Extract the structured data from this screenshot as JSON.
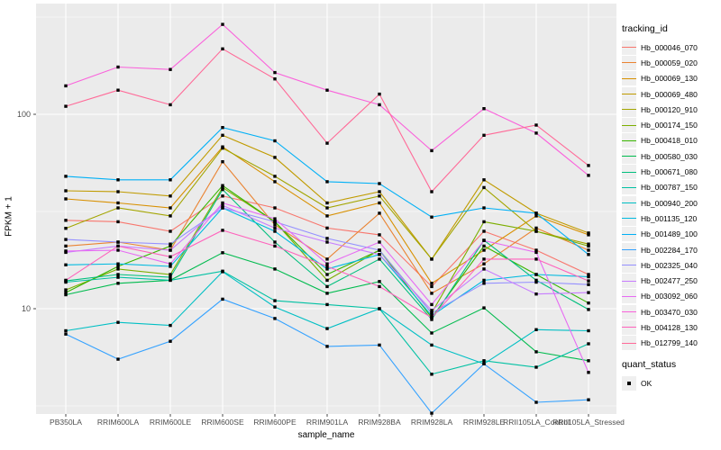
{
  "chart_data": {
    "type": "line",
    "title": "",
    "xlabel": "sample_name",
    "ylabel": "FPKM + 1",
    "yscale": "log10",
    "ylim": [
      2.8,
      360
    ],
    "yticks": [
      {
        "value": 10,
        "label": "10"
      },
      {
        "value": 100,
        "label": "100"
      }
    ],
    "yminor": [
      3.162,
      31.62,
      316.2
    ],
    "grid": "white-on-grey",
    "legend_position": "right",
    "categories": [
      "PB350LA",
      "RRIM600LA",
      "RRIM600LE",
      "RRIM600SE",
      "RRIM600PE",
      "RRIM901LA",
      "RRIM928BA",
      "RRIM928LA",
      "RRIM928LE",
      "RRII105LA_Control",
      "RRII105LA_Stressed"
    ],
    "series": [
      {
        "name": "Hb_000046_070",
        "color": "#F8766D",
        "values": [
          28.5,
          28,
          25,
          38,
          33,
          26,
          24,
          13,
          25,
          20,
          15
        ]
      },
      {
        "name": "Hb_000059_020",
        "color": "#EA8331",
        "values": [
          21,
          22,
          20,
          57,
          27,
          18,
          31,
          12,
          17,
          26,
          20
        ]
      },
      {
        "name": "Hb_000069_130",
        "color": "#D89000",
        "values": [
          36.7,
          35,
          33,
          68,
          45,
          30,
          35,
          13.5,
          20,
          30,
          24
        ]
      },
      {
        "name": "Hb_000069_480",
        "color": "#C09B00",
        "values": [
          40.4,
          40,
          38,
          78,
          60,
          35,
          40,
          18,
          46,
          31,
          24.5
        ]
      },
      {
        "name": "Hb_000120_910",
        "color": "#A3A500",
        "values": [
          25.9,
          33,
          30,
          67,
          48,
          33,
          38,
          18,
          42,
          25,
          21.5
        ]
      },
      {
        "name": "Hb_000174_150",
        "color": "#7CAE00",
        "values": [
          12.5,
          16,
          15,
          42,
          28,
          14,
          20,
          9.5,
          28,
          25,
          21
        ]
      },
      {
        "name": "Hb_000418_010",
        "color": "#39B600",
        "values": [
          12.1,
          16.5,
          21,
          43,
          28,
          15,
          20,
          9,
          21,
          15,
          10.7
        ]
      },
      {
        "name": "Hb_000580_030",
        "color": "#00BB4E",
        "values": [
          11.8,
          13.5,
          14,
          19.4,
          16,
          12,
          13.8,
          7.5,
          10.1,
          6,
          5.4
        ]
      },
      {
        "name": "Hb_000671_080",
        "color": "#00BF7D",
        "values": [
          13.9,
          15,
          14.5,
          41,
          22,
          13,
          18,
          8.8,
          22.5,
          14,
          9.9
        ]
      },
      {
        "name": "Hb_000787_150",
        "color": "#00C1A3",
        "values": [
          13.7,
          14.5,
          14,
          15.6,
          11,
          10.5,
          10,
          4.6,
          5.4,
          5,
          6.6
        ]
      },
      {
        "name": "Hb_000940_200",
        "color": "#00BFC4",
        "values": [
          7.7,
          8.5,
          8.2,
          15.5,
          10.2,
          7.9,
          10,
          6.5,
          5.2,
          7.8,
          7.7
        ]
      },
      {
        "name": "Hb_001135_120",
        "color": "#00BAE0",
        "values": [
          16.8,
          17,
          16.5,
          33,
          25,
          16,
          19,
          9.2,
          14,
          15,
          14.6
        ]
      },
      {
        "name": "Hb_001489_100",
        "color": "#00B0F6",
        "values": [
          48,
          46,
          46,
          85.5,
          73,
          45,
          44,
          29.6,
          33,
          31,
          19
        ]
      },
      {
        "name": "Hb_002284_170",
        "color": "#35A2FF",
        "values": [
          7.4,
          5.5,
          6.8,
          11.2,
          8.9,
          6.4,
          6.5,
          2.9,
          5.2,
          3.3,
          3.4
        ]
      },
      {
        "name": "Hb_002325_040",
        "color": "#9590FF",
        "values": [
          22.7,
          22,
          21.5,
          33,
          28,
          23,
          20,
          9.5,
          13.5,
          13.7,
          13.3
        ]
      },
      {
        "name": "Hb_002477_250",
        "color": "#C77CFF",
        "values": [
          19.5,
          21,
          20,
          34,
          26,
          22,
          19,
          9.8,
          16,
          11.9,
          12.1
        ]
      },
      {
        "name": "Hb_003092_060",
        "color": "#E76BF3",
        "values": [
          19.8,
          20,
          17,
          35,
          29,
          17,
          22,
          10.5,
          22.4,
          19.5,
          4.7
        ]
      },
      {
        "name": "Hb_003470_030",
        "color": "#FA62DB",
        "values": [
          140,
          175,
          170,
          290,
          164,
          133,
          112,
          65,
          107,
          80,
          48.5
        ]
      },
      {
        "name": "Hb_004128_130",
        "color": "#FF62BC",
        "values": [
          14,
          21,
          18.5,
          25.3,
          21,
          16.5,
          13,
          9,
          18,
          18,
          13.9
        ]
      },
      {
        "name": "Hb_012799_140",
        "color": "#FF6A98",
        "values": [
          110,
          133,
          112,
          217,
          152,
          71,
          127,
          40,
          78,
          88,
          54.5
        ]
      }
    ],
    "legend": {
      "tracking_title": "tracking_id",
      "quant_title": "quant_status",
      "quant_label": "OK"
    },
    "colors": {
      "panel_background": "#EBEBEB",
      "gridline": "#FFFFFF",
      "tick_text": "#4D4D4D",
      "axis_title_text": "#000000",
      "point": "#000000",
      "legend_key_fill": "#EFEFEF"
    }
  }
}
